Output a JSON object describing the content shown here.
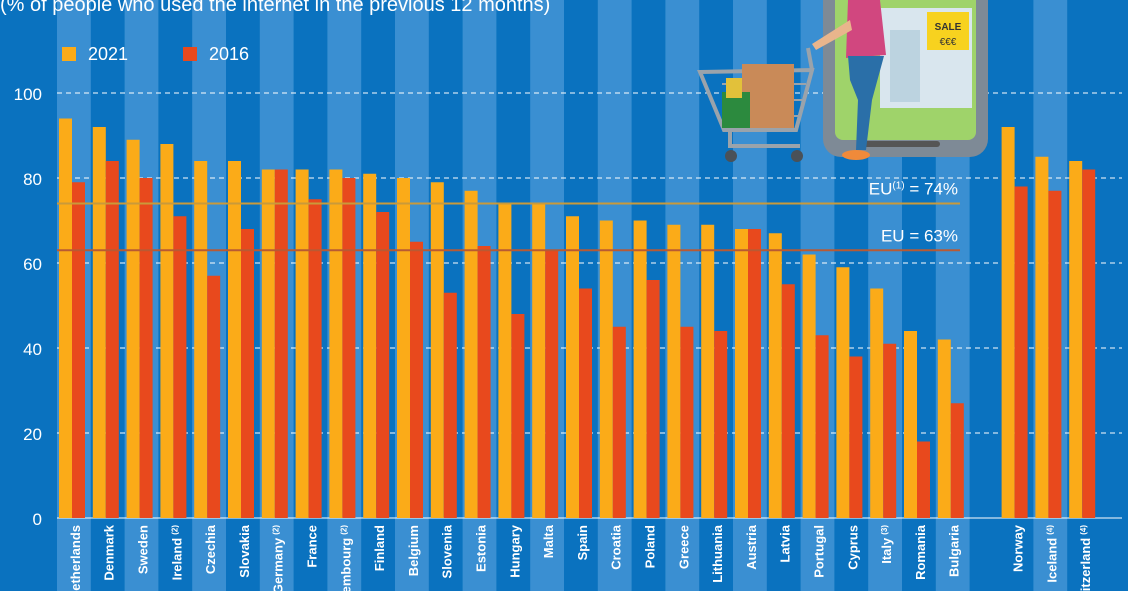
{
  "subtitle": "(% of people who used the internet in the previous 12 months)",
  "colors": {
    "background": "#0a72bf",
    "band_light": "#3a8fd2",
    "series_2021": "#fbab18",
    "series_2016": "#e8491d",
    "eu_line_2021": "#c99a3a",
    "eu_line_2016": "#b85a34"
  },
  "illustration": {
    "sign_text": "SALE",
    "sign_price": "€€€",
    "icon": "shopping-cart-phone-illustration"
  },
  "chart_data": {
    "type": "bar",
    "xlabel": "",
    "ylabel": "",
    "ylim": [
      0,
      100
    ],
    "yticks": [
      0,
      20,
      40,
      60,
      80,
      100
    ],
    "grid": "dashed horizontal lines",
    "legend_placement": "top-left",
    "categories": [
      "Netherlands",
      "Denmark",
      "Sweden",
      "Ireland",
      "Czechia",
      "Slovakia",
      "Germany",
      "France",
      "Luxembourg",
      "Finland",
      "Belgium",
      "Slovenia",
      "Estonia",
      "Hungary",
      "Malta",
      "Spain",
      "Croatia",
      "Poland",
      "Greece",
      "Lithuania",
      "Austria",
      "Latvia",
      "Portugal",
      "Cyprus",
      "Italy",
      "Romania",
      "Bulgaria",
      "Norway",
      "Iceland",
      "Switzerland"
    ],
    "category_notes": [
      "",
      "",
      "",
      "(2)",
      "",
      "",
      "(2)",
      "",
      "(2)",
      "",
      "",
      "",
      "",
      "",
      "",
      "",
      "",
      "",
      "",
      "",
      "",
      "",
      "",
      "",
      "(3)",
      "",
      "",
      "",
      "(4)",
      "(4)"
    ],
    "groups": [
      27,
      3
    ],
    "series": [
      {
        "name": "2021",
        "values": [
          94,
          92,
          89,
          88,
          84,
          84,
          82,
          82,
          82,
          81,
          80,
          79,
          77,
          74,
          74,
          71,
          70,
          70,
          69,
          69,
          68,
          67,
          62,
          59,
          54,
          44,
          42,
          92,
          85,
          84
        ]
      },
      {
        "name": "2016",
        "values": [
          79,
          84,
          80,
          71,
          57,
          68,
          82,
          75,
          80,
          72,
          65,
          53,
          64,
          48,
          63,
          54,
          45,
          56,
          45,
          44,
          68,
          55,
          43,
          38,
          41,
          18,
          27,
          78,
          77,
          82
        ]
      }
    ],
    "reference_lines": [
      {
        "label": "EU",
        "note": "(1)",
        "suffix": " = 74%",
        "value": 74,
        "series": "2021"
      },
      {
        "label": "EU",
        "note": "",
        "suffix": " = 63%",
        "value": 63,
        "series": "2016"
      }
    ]
  }
}
